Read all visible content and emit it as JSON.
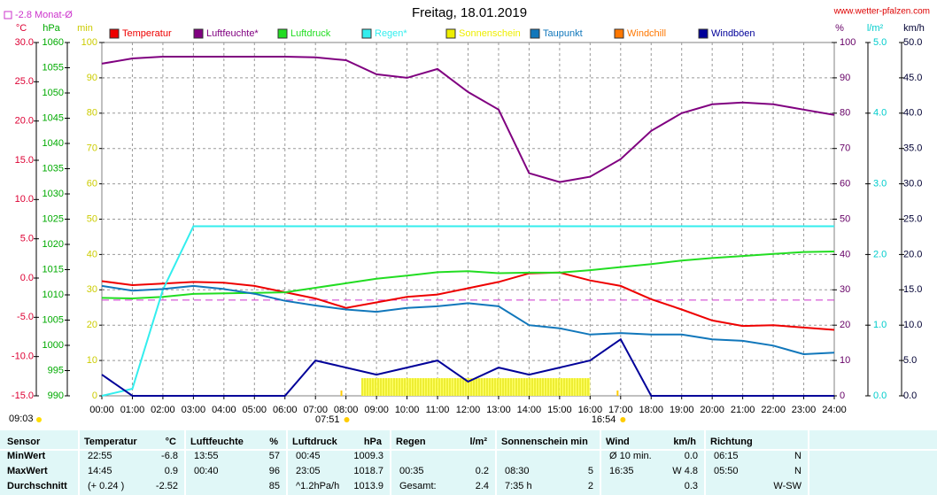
{
  "chart_data": {
    "type": "line",
    "title": "Freitag, 18.01.2019",
    "source": "www.wetter-pfalzen.com",
    "monthly_avg": {
      "value": -2.8,
      "label": "-2.8 Monat-Ø",
      "color": "#cc33cc"
    },
    "time_label": "09:03",
    "annotations": [
      {
        "x": 7.85,
        "label": "07:51"
      },
      {
        "x": 16.9,
        "label": "16:54"
      }
    ],
    "grid": true,
    "xlim": [
      0,
      24
    ],
    "xticks": [
      {
        "value": 0,
        "label": "00:00"
      },
      {
        "value": 1,
        "label": "01:00"
      },
      {
        "value": 2,
        "label": "02:00"
      },
      {
        "value": 3,
        "label": "03:00"
      },
      {
        "value": 4,
        "label": "04:00"
      },
      {
        "value": 5,
        "label": "05:00"
      },
      {
        "value": 6,
        "label": "06:00"
      },
      {
        "value": 7,
        "label": "07:00"
      },
      {
        "value": 8,
        "label": "08:00"
      },
      {
        "value": 9,
        "label": "09:00"
      },
      {
        "value": 10,
        "label": "10:00"
      },
      {
        "value": 11,
        "label": "11:00"
      },
      {
        "value": 12,
        "label": "12:00"
      },
      {
        "value": 13,
        "label": "13:00"
      },
      {
        "value": 14,
        "label": "14:00"
      },
      {
        "value": 15,
        "label": "15:00"
      },
      {
        "value": 16,
        "label": "16:00"
      },
      {
        "value": 17,
        "label": "17:00"
      },
      {
        "value": 18,
        "label": "18:00"
      },
      {
        "value": 19,
        "label": "19:00"
      },
      {
        "value": 20,
        "label": "20:00"
      },
      {
        "value": 21,
        "label": "21:00"
      },
      {
        "value": 22,
        "label": "22:00"
      },
      {
        "value": 23,
        "label": "23:00"
      },
      {
        "value": 24,
        "label": "24:00"
      }
    ],
    "ylabel": "°C",
    "ycolor": "#dd0033",
    "ylim": [
      -15,
      30
    ],
    "yticks": [
      {
        "value": -15,
        "label": "-15.0"
      },
      {
        "value": -10,
        "label": "-10.0"
      },
      {
        "value": -5,
        "label": "-5.0"
      },
      {
        "value": 0,
        "label": "0.0"
      },
      {
        "value": 5,
        "label": "5.0"
      },
      {
        "value": 10,
        "label": "10.0"
      },
      {
        "value": 15,
        "label": "15.0"
      },
      {
        "value": 20,
        "label": "20.0"
      },
      {
        "value": 25,
        "label": "25.0"
      },
      {
        "value": 30,
        "label": "30.0"
      }
    ],
    "y2label": "hPa",
    "y2color": "#00aa00",
    "y2lim": [
      990,
      1060
    ],
    "y2ticks": [
      990,
      995,
      1000,
      1005,
      1010,
      1015,
      1020,
      1025,
      1030,
      1035,
      1040,
      1045,
      1050,
      1055,
      1060
    ],
    "y3label": "min",
    "y3color": "#cccc00",
    "y3lim": [
      0,
      100
    ],
    "y3ticks": [
      0,
      10,
      20,
      30,
      40,
      50,
      60,
      70,
      80,
      90,
      100
    ],
    "y4label": "%",
    "y4color": "#660066",
    "y4lim": [
      0,
      100
    ],
    "y4ticks": [
      0,
      10,
      20,
      30,
      40,
      50,
      60,
      70,
      80,
      90,
      100
    ],
    "y5label": "l/m²",
    "y5color": "#00cccc",
    "y5lim": [
      0,
      5
    ],
    "y5ticks": [
      {
        "value": 0,
        "label": "0.0"
      },
      {
        "value": 1,
        "label": "1.0"
      },
      {
        "value": 2,
        "label": "2.0"
      },
      {
        "value": 3,
        "label": "3.0"
      },
      {
        "value": 4,
        "label": "4.0"
      },
      {
        "value": 5,
        "label": "5.0"
      }
    ],
    "y6label": "km/h",
    "y6color": "#000033",
    "y6lim": [
      0,
      50
    ],
    "y6ticks": [
      {
        "value": 0,
        "label": "0.0"
      },
      {
        "value": 5,
        "label": "5.0"
      },
      {
        "value": 10,
        "label": "10.0"
      },
      {
        "value": 15,
        "label": "15.0"
      },
      {
        "value": 20,
        "label": "20.0"
      },
      {
        "value": 25,
        "label": "25.0"
      },
      {
        "value": 30,
        "label": "30.0"
      },
      {
        "value": 35,
        "label": "35.0"
      },
      {
        "value": 40,
        "label": "40.0"
      },
      {
        "value": 45,
        "label": "45.0"
      },
      {
        "value": 50,
        "label": "50.0"
      }
    ],
    "x": [
      0,
      1,
      2,
      3,
      4,
      5,
      6,
      7,
      8,
      9,
      10,
      11,
      12,
      13,
      14,
      15,
      16,
      17,
      18,
      19,
      20,
      21,
      22,
      23,
      24
    ],
    "series": [
      {
        "name": "Temperatur",
        "color": "#ee0000",
        "axis": "y",
        "values": [
          -0.4,
          -0.9,
          -0.7,
          -0.5,
          -0.6,
          -1.0,
          -1.8,
          -2.6,
          -3.8,
          -3.1,
          -2.4,
          -2.1,
          -1.3,
          -0.5,
          0.6,
          0.7,
          -0.3,
          -1.0,
          -2.7,
          -4.0,
          -5.4,
          -6.1,
          -6.0,
          -6.3,
          -6.6
        ]
      },
      {
        "name": "Luftfeuchte*",
        "color": "#800080",
        "axis": "y4",
        "values": [
          94,
          95.5,
          96,
          96,
          96,
          96,
          96,
          95.8,
          95,
          91,
          90,
          92.5,
          86,
          81,
          63,
          60.5,
          62,
          67,
          75,
          80,
          82.5,
          83,
          82.5,
          81,
          79.5
        ]
      },
      {
        "name": "Luftdruck",
        "color": "#22dd22",
        "axis": "y2",
        "values": [
          1009.4,
          1009.3,
          1009.6,
          1010.2,
          1010.3,
          1010.4,
          1010.5,
          1011.4,
          1012.3,
          1013.2,
          1013.8,
          1014.5,
          1014.7,
          1014.3,
          1014.4,
          1014.4,
          1014.9,
          1015.5,
          1016.1,
          1016.8,
          1017.3,
          1017.7,
          1018.1,
          1018.5,
          1018.6
        ]
      },
      {
        "name": "Regen*",
        "color": "#33eeee",
        "axis": "y5",
        "values": [
          0,
          0.1,
          1.5,
          2.4,
          2.4,
          2.4,
          2.4,
          2.4,
          2.4,
          2.4,
          2.4,
          2.4,
          2.4,
          2.4,
          2.4,
          2.4,
          2.4,
          2.4,
          2.4,
          2.4,
          2.4,
          2.4,
          2.4,
          2.4,
          2.4
        ]
      },
      {
        "name": "Sonnenschein",
        "color": "#eeee00",
        "axis": "y3",
        "kind": "bar",
        "x": [
          8.5,
          9,
          9.5,
          10,
          10.5,
          11,
          11.5,
          12,
          12.5,
          13,
          13.5,
          14,
          14.5,
          15,
          15.5
        ],
        "values": [
          5,
          5,
          5,
          5,
          5,
          5,
          5,
          5,
          5,
          5,
          5,
          5,
          5,
          5,
          5
        ]
      },
      {
        "name": "Taupunkt",
        "color": "#1177bb",
        "axis": "y",
        "values": [
          -1.0,
          -1.6,
          -1.4,
          -1.0,
          -1.4,
          -2.0,
          -2.9,
          -3.5,
          -4.0,
          -4.3,
          -3.8,
          -3.6,
          -3.2,
          -3.6,
          -6.0,
          -6.4,
          -7.2,
          -7.0,
          -7.2,
          -7.2,
          -7.8,
          -8.0,
          -8.6,
          -9.7,
          -9.5
        ]
      },
      {
        "name": "Windchill",
        "color": "#ff7700",
        "axis": "y"
      },
      {
        "name": "Windböen",
        "color": "#000099",
        "axis": "y6",
        "values": [
          3,
          0,
          0,
          0,
          0,
          0,
          0,
          5,
          4,
          3,
          4,
          5,
          2,
          4,
          3,
          4,
          5,
          8,
          0,
          0,
          0,
          0,
          0,
          0,
          0
        ]
      }
    ]
  },
  "table": {
    "header": [
      [
        "Sensor"
      ],
      [
        "Temperatur",
        "°C"
      ],
      [
        "Luftfeuchte",
        "%"
      ],
      [
        "Luftdruck",
        "hPa"
      ],
      [
        "Regen",
        "l/m²"
      ],
      [
        "Sonnenschein min"
      ],
      [
        "Wind",
        "km/h"
      ],
      [
        "Richtung"
      ]
    ],
    "rows": [
      {
        "label": "MinWert",
        "cells": [
          [
            "22:55",
            "-6.8"
          ],
          [
            "13:55",
            "57"
          ],
          [
            "00:45",
            "1009.3"
          ],
          [
            null,
            null
          ],
          [
            null,
            null
          ],
          [
            "Ø 10 min.",
            "0.0"
          ],
          [
            "06:15",
            "N"
          ]
        ]
      },
      {
        "label": "MaxWert",
        "cells": [
          [
            "14:45",
            "0.9"
          ],
          [
            "00:40",
            "96"
          ],
          [
            "23:05",
            "1018.7"
          ],
          [
            "00:35",
            "0.2"
          ],
          [
            "08:30",
            "5"
          ],
          [
            "16:35",
            "W 4.8"
          ],
          [
            "05:50",
            "N"
          ]
        ]
      },
      {
        "label": "Durchschnitt",
        "cells": [
          [
            "(+ 0.24 )",
            "-2.52"
          ],
          [
            null,
            "85"
          ],
          [
            "^1.2hPa/h",
            "1013.9"
          ],
          [
            "Gesamt:",
            "2.4"
          ],
          [
            "7:35 h",
            "2"
          ],
          [
            null,
            "0.3"
          ],
          [
            null,
            "W-SW"
          ]
        ]
      }
    ]
  }
}
